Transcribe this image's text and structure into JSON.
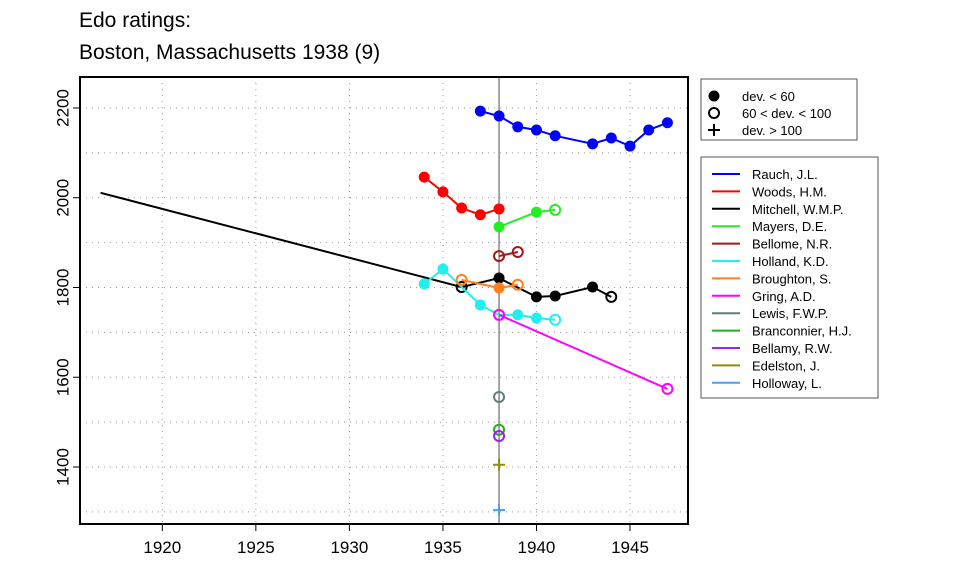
{
  "chart_data": {
    "type": "line",
    "title": "Edo ratings:",
    "subtitle": "Boston, Massachusetts 1938 (9)",
    "xlabel": "",
    "ylabel": "",
    "xlim": [
      1915.6,
      1948.1
    ],
    "ylim": [
      1273,
      2269
    ],
    "xticks": [
      1920,
      1925,
      1930,
      1935,
      1940,
      1945
    ],
    "yticks": [
      1400,
      1600,
      1800,
      2000,
      2200
    ],
    "grid": true,
    "reference_year": 1938,
    "marker_legend": {
      "placement": "top-right outside",
      "items": [
        {
          "marker": "filled",
          "label": "dev. < 60"
        },
        {
          "marker": "open",
          "label": "60 < dev. < 100"
        },
        {
          "marker": "plus",
          "label": "dev. > 100"
        }
      ]
    },
    "legend_placement": "right outside",
    "series": [
      {
        "name": "Rauch, J.L.",
        "color": "#0000ff",
        "points": [
          [
            1937,
            2193,
            "filled"
          ],
          [
            1938,
            2182,
            "filled"
          ],
          [
            1939,
            2158,
            "filled"
          ],
          [
            1940,
            2151,
            "filled"
          ],
          [
            1941,
            2138,
            "filled"
          ],
          [
            1943,
            2120,
            "filled"
          ],
          [
            1944,
            2133,
            "filled"
          ],
          [
            1945,
            2115,
            "filled"
          ],
          [
            1946,
            2151,
            "filled"
          ],
          [
            1947,
            2167,
            "filled"
          ]
        ]
      },
      {
        "name": "Woods, H.M.",
        "color": "#ff0000",
        "points": [
          [
            1934,
            2046,
            "filled"
          ],
          [
            1935,
            2013,
            "filled"
          ],
          [
            1936,
            1977,
            "filled"
          ],
          [
            1937,
            1962,
            "filled"
          ],
          [
            1938,
            1975,
            "filled"
          ]
        ]
      },
      {
        "name": "Mitchell, W.M.P.",
        "color": "#000000",
        "points": [
          [
            1916.7,
            2011,
            "none"
          ],
          [
            1936,
            1801,
            "open"
          ],
          [
            1938,
            1821,
            "filled"
          ],
          [
            1940,
            1779,
            "filled"
          ],
          [
            1941,
            1781,
            "filled"
          ],
          [
            1943,
            1801,
            "filled"
          ],
          [
            1944,
            1779,
            "open"
          ]
        ]
      },
      {
        "name": "Mayers, D.E.",
        "color": "#22ee22",
        "points": [
          [
            1938,
            1935,
            "filled"
          ],
          [
            1940,
            1968,
            "filled"
          ],
          [
            1941,
            1973,
            "open"
          ]
        ]
      },
      {
        "name": "Bellome, N.R.",
        "color": "#a01818",
        "points": [
          [
            1938,
            1870,
            "open"
          ],
          [
            1939,
            1879,
            "open"
          ]
        ]
      },
      {
        "name": "Holland, K.D.",
        "color": "#22eeee",
        "points": [
          [
            1934,
            1808,
            "filled"
          ],
          [
            1935,
            1841,
            "filled"
          ],
          [
            1937,
            1761,
            "filled"
          ],
          [
            1938,
            1739,
            "open"
          ],
          [
            1939,
            1739,
            "filled"
          ],
          [
            1940,
            1732,
            "filled"
          ],
          [
            1941,
            1728,
            "open"
          ]
        ]
      },
      {
        "name": "Broughton, S.",
        "color": "#ff7f1f",
        "points": [
          [
            1936,
            1817,
            "open"
          ],
          [
            1938,
            1799,
            "filled"
          ],
          [
            1939,
            1806,
            "open"
          ]
        ]
      },
      {
        "name": "Gring, A.D.",
        "color": "#ff00ff",
        "points": [
          [
            1938,
            1739,
            "open"
          ],
          [
            1947,
            1574,
            "open"
          ]
        ]
      },
      {
        "name": "Lewis, F.W.P.",
        "color": "#5f7f7f",
        "points": [
          [
            1938,
            1556,
            "open"
          ]
        ]
      },
      {
        "name": "Branconnier, H.J.",
        "color": "#1faf1f",
        "points": [
          [
            1938,
            1483,
            "open"
          ]
        ]
      },
      {
        "name": "Bellamy, R.W.",
        "color": "#9f1fef",
        "points": [
          [
            1938,
            1469,
            "open"
          ]
        ]
      },
      {
        "name": "Edelston, J.",
        "color": "#8f8f00",
        "points": [
          [
            1938,
            1405,
            "plus"
          ]
        ]
      },
      {
        "name": "Holloway, L.",
        "color": "#4f9fef",
        "points": [
          [
            1938,
            1304,
            "plus"
          ]
        ]
      }
    ]
  }
}
